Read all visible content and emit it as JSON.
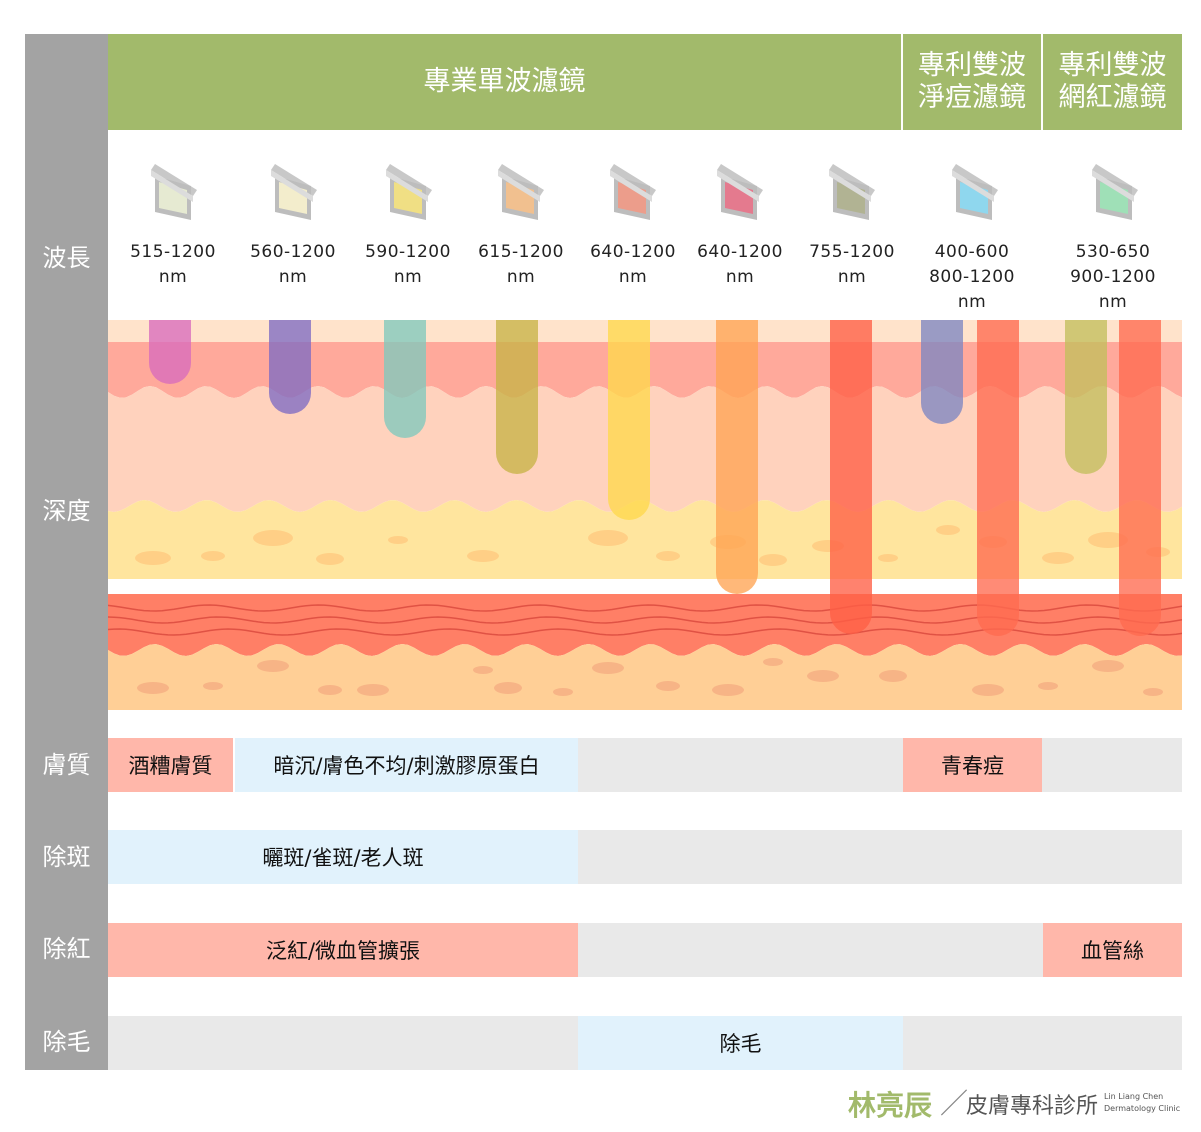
{
  "sidebar_labels": {
    "wavelength": "波長",
    "depth": "深度",
    "skin_quality": "膚質",
    "spot_removal": "除斑",
    "redness_removal": "除紅",
    "hair_removal": "除毛"
  },
  "header": {
    "single_wave": "專業單波濾鏡",
    "dual_acne": "專利雙波\n淨痘濾鏡",
    "dual_redness": "專利雙波\n網紅濾鏡"
  },
  "filters": [
    {
      "wavelength": "515-1200\nnm",
      "color": "#e6ead2"
    },
    {
      "wavelength": "560-1200\nnm",
      "color": "#f3edcc"
    },
    {
      "wavelength": "590-1200\nnm",
      "color": "#f0df84"
    },
    {
      "wavelength": "615-1200\nnm",
      "color": "#f1c08f"
    },
    {
      "wavelength": "640-1200\nnm",
      "color": "#ec9d8b"
    },
    {
      "wavelength": "640-1200\nnm",
      "color": "#e47a8e"
    },
    {
      "wavelength": "755-1200\nnm",
      "color": "#b1b393"
    },
    {
      "wavelength": "400-600\n800-1200\nnm",
      "color": "#8fd7ee"
    },
    {
      "wavelength": "530-650\n900-1200\nnm",
      "color": "#9fe0b7"
    }
  ],
  "depth_beam_colors": [
    "#d86bbd",
    "#7f6cc3",
    "#80c9bd",
    "#c8b347",
    "#ffd84c",
    "#ffa453",
    "#ff5f45",
    "#7e86c1",
    "#ff6a4f",
    "#c3bf5c",
    "#ff6a4f"
  ],
  "skin_layer_colors": {
    "surface": "#ffe3cb",
    "epidermis": "#ffa99b",
    "dermis": "#ffd2bd",
    "fat": "#ffe59e",
    "vessel": "#ff7f66",
    "deep": "#ffcf96"
  },
  "rows": {
    "skin_quality": [
      "酒糟膚質",
      "暗沉/膚色不均/刺激膠原蛋白",
      "",
      "青春痘",
      ""
    ],
    "spot_removal": [
      "曬斑/雀斑/老人斑",
      ""
    ],
    "redness_removal": [
      "泛紅/微血管擴張",
      "",
      "血管絲"
    ],
    "hair_removal": [
      "",
      "除毛",
      ""
    ]
  },
  "footer": {
    "name": "林亮辰",
    "slash": "／",
    "clinic": "皮膚專科診所",
    "en_line1": "Lin Liang Chen",
    "en_line2": "Dermatology Clinic"
  },
  "colors": {
    "sidebar": "#a3a3a3",
    "header": "#a2ba6b",
    "pink": "#ffb7aa",
    "light_blue": "#e1f2fc",
    "grey": "#e9e9e9"
  }
}
